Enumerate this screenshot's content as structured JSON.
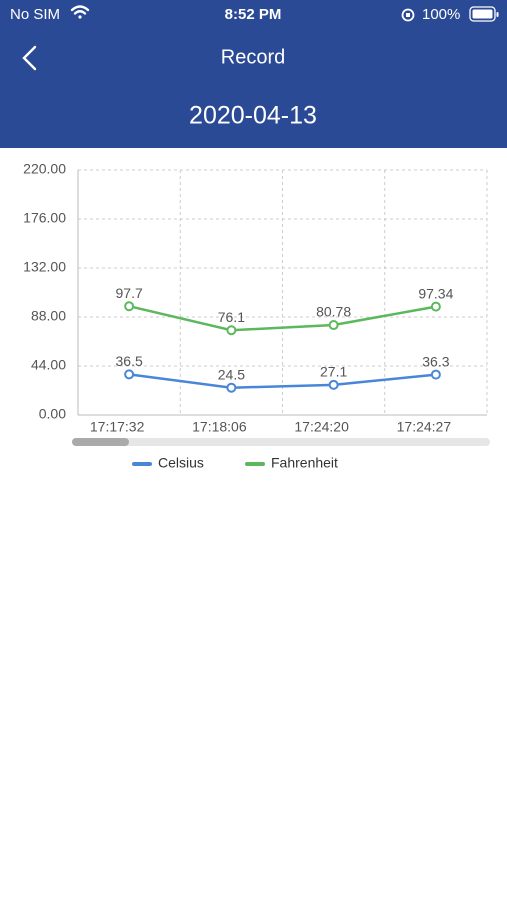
{
  "status_bar": {
    "carrier": "No SIM",
    "time": "8:52 PM",
    "battery": "100%"
  },
  "header": {
    "title": "Record",
    "date": "2020-04-13"
  },
  "chart_data": {
    "type": "line",
    "categories": [
      "17:17:32",
      "17:18:06",
      "17:24:20",
      "17:24:27"
    ],
    "series": [
      {
        "name": "Celsius",
        "color": "#4a86d8",
        "values": [
          36.5,
          24.5,
          27.1,
          36.3
        ]
      },
      {
        "name": "Fahrenheit",
        "color": "#5cb85c",
        "values": [
          97.7,
          76.1,
          80.78,
          97.34
        ]
      }
    ],
    "ylim": [
      0,
      220
    ],
    "yticks": [
      {
        "value": 0,
        "label": "0.00"
      },
      {
        "value": 44,
        "label": "44.00"
      },
      {
        "value": 88,
        "label": "88.00"
      },
      {
        "value": 132,
        "label": "132.00"
      },
      {
        "value": 176,
        "label": "176.00"
      },
      {
        "value": 220,
        "label": "220.00"
      }
    ],
    "grid": true
  }
}
